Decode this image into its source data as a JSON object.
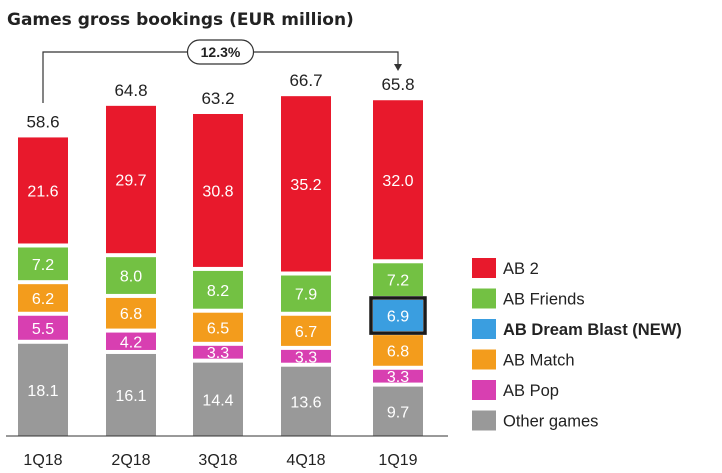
{
  "chart_data": {
    "type": "bar",
    "stacked": true,
    "title": "Games gross bookings (EUR million)",
    "categories": [
      "1Q18",
      "2Q18",
      "3Q18",
      "4Q18",
      "1Q19"
    ],
    "totals": [
      "58.6",
      "64.8",
      "63.2",
      "66.7",
      "65.8"
    ],
    "series": [
      {
        "name": "Other games",
        "color": "#999999",
        "values": [
          18.1,
          16.1,
          14.4,
          13.6,
          9.7
        ]
      },
      {
        "name": "AB Pop",
        "color": "#d83fb1",
        "values": [
          5.5,
          4.2,
          3.3,
          3.3,
          3.3
        ]
      },
      {
        "name": "AB Match",
        "color": "#f39c1c",
        "values": [
          6.2,
          6.8,
          6.5,
          6.7,
          6.8
        ]
      },
      {
        "name": "AB Dream Blast (NEW)",
        "color": "#3a9ee0",
        "values": [
          null,
          null,
          null,
          null,
          6.9
        ],
        "bold": true
      },
      {
        "name": "AB Friends",
        "color": "#73c143",
        "values": [
          7.2,
          8.0,
          8.2,
          7.9,
          7.2
        ]
      },
      {
        "name": "AB 2",
        "color": "#e8192c",
        "values": [
          21.6,
          29.7,
          30.8,
          35.2,
          32.0
        ]
      }
    ],
    "legend_order": [
      "AB 2",
      "AB Friends",
      "AB Dream Blast (NEW)",
      "AB Match",
      "AB Pop",
      "Other games"
    ],
    "growth_annotation": "12.3%",
    "legend_position": "right"
  }
}
